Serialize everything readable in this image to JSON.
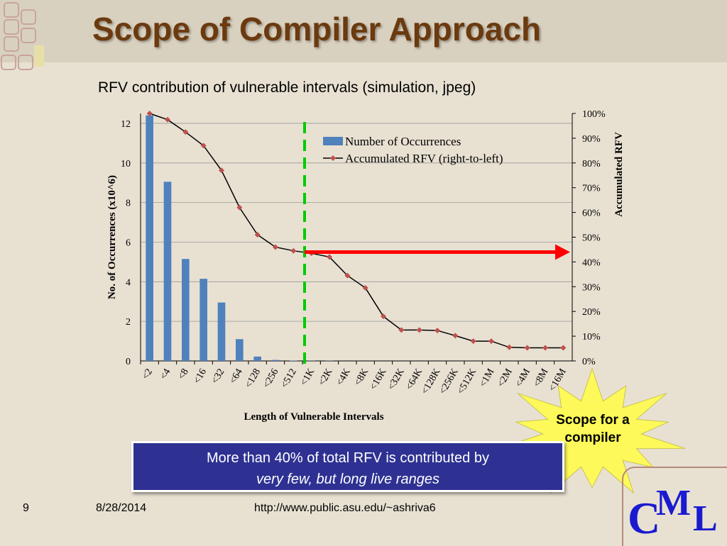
{
  "slide": {
    "title": "Scope of Compiler Approach",
    "page_number": "9",
    "date": "8/28/2014",
    "url": "http://www.public.asu.edu/~ashriva6",
    "logo": {
      "c": "C",
      "m": "M",
      "l": "L"
    }
  },
  "callout": {
    "line1": "More than 40% of total RFV is contributed by",
    "line2": "very few, but long live ranges"
  },
  "starburst": {
    "label_line1": "Scope for a",
    "label_line2": "compiler"
  },
  "colors": {
    "bar": "#4f81bd",
    "line": "#000000",
    "marker": "#c0504d",
    "threshold": "#00cc00",
    "arrow": "#ff0000",
    "callout_bg": "#2e3192",
    "title": "#6b3a0e",
    "starburst": "#fdf95a"
  },
  "chart_data": {
    "type": "bar+line",
    "title": "RFV contribution of vulnerable intervals (simulation, jpeg)",
    "xlabel": "Length of Vulnerable Intervals",
    "ylabel_left": "No. of Occurrences (x10^6)",
    "ylabel_right": "Accumulated RFV",
    "categories": [
      "<2",
      "<4",
      "<8",
      "<16",
      "<32",
      "<64",
      "<128",
      "<256",
      "<512",
      "<1K",
      "<2K",
      "<4K",
      "<8K",
      "<16K",
      "<32K",
      "<64K",
      "<128K",
      "<256K",
      "<512K",
      "<1M",
      "<2M",
      "<4M",
      "<8M",
      "<16M"
    ],
    "ylim_left": [
      0,
      12.5
    ],
    "yticks_left": [
      0,
      2,
      4,
      6,
      8,
      10,
      12
    ],
    "ylim_right": [
      0,
      100
    ],
    "yticks_right": [
      "0%",
      "10%",
      "20%",
      "30%",
      "40%",
      "50%",
      "60%",
      "70%",
      "80%",
      "90%",
      "100%"
    ],
    "series": [
      {
        "name": "Number of Occurrences",
        "type": "bar",
        "axis": "left",
        "values": [
          12.4,
          9.05,
          5.15,
          4.15,
          2.95,
          1.1,
          0.22,
          0.05,
          0.02,
          0.01,
          0.01,
          0,
          0,
          0,
          0,
          0,
          0,
          0,
          0,
          0,
          0,
          0,
          0,
          0
        ]
      },
      {
        "name": "Accumulated RFV (right-to-left)",
        "type": "line",
        "axis": "right",
        "values": [
          100,
          97.5,
          92.5,
          87,
          77,
          62,
          51,
          46,
          44.5,
          43.5,
          42,
          34.5,
          29.5,
          18,
          12.5,
          12.5,
          12.3,
          10.2,
          8,
          8,
          5.5,
          5.3,
          5.3,
          5.3
        ]
      }
    ],
    "legend_position": "top-center",
    "annotations": {
      "threshold_after_category": "<512",
      "arrow": "horizontal arrow at ~44% toward right axis"
    }
  }
}
